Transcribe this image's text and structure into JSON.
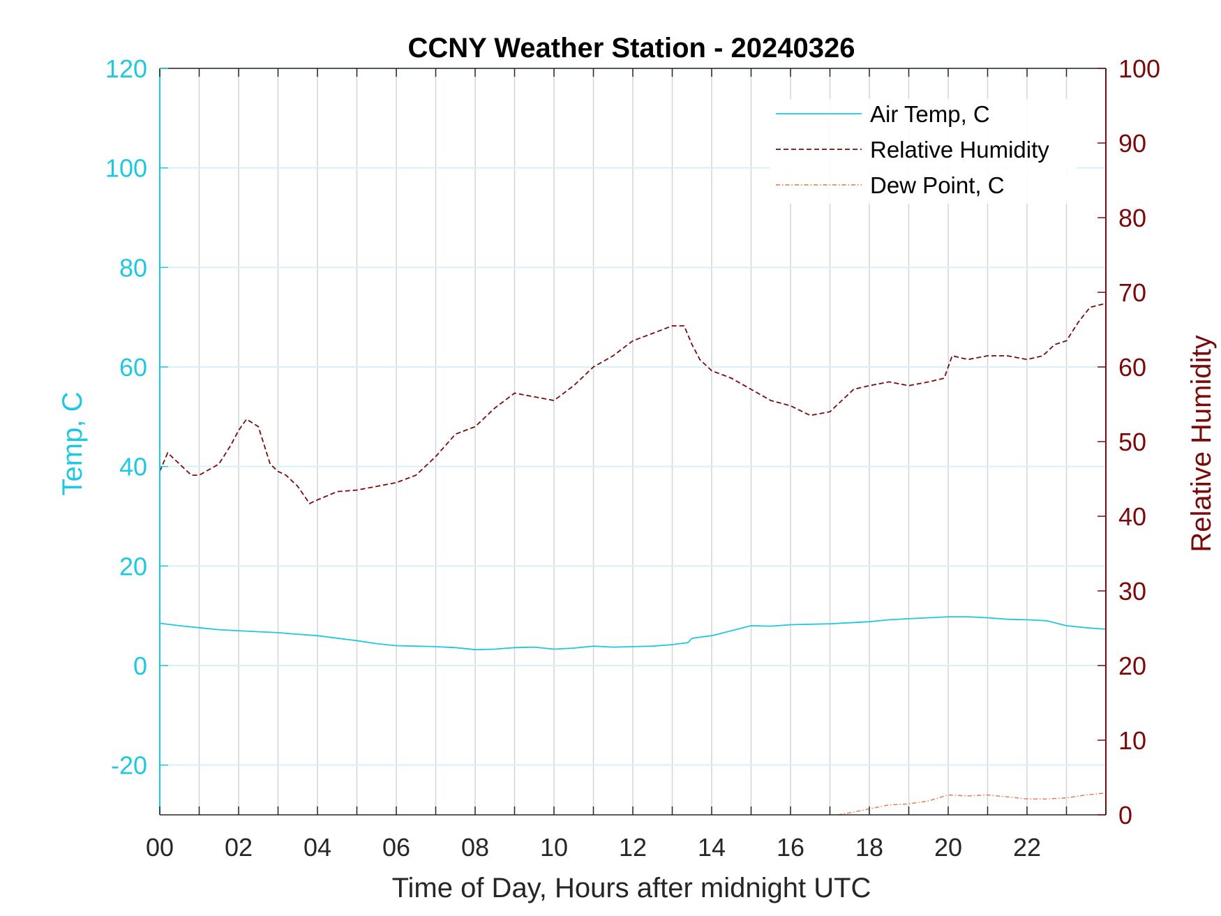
{
  "chart_data": {
    "type": "line",
    "title": "CCNY Weather Station - 20240326",
    "xlabel": "Time of Day, Hours after midnight UTC",
    "ylabel_left": "Temp, C",
    "ylabel_right": "Relative Humidity",
    "xlim": [
      0,
      24
    ],
    "ylim_left": [
      -30,
      120
    ],
    "ylim_right": [
      0,
      100
    ],
    "x_ticks": [
      0,
      2,
      4,
      6,
      8,
      10,
      12,
      14,
      16,
      18,
      20,
      22
    ],
    "x_tick_labels": [
      "00",
      "02",
      "04",
      "06",
      "08",
      "10",
      "12",
      "14",
      "16",
      "18",
      "20",
      "22"
    ],
    "y_left_ticks": [
      -20,
      0,
      20,
      40,
      60,
      80,
      100,
      120
    ],
    "y_left_tick_labels": [
      "-20",
      "0",
      "20",
      "40",
      "60",
      "80",
      "100",
      "120"
    ],
    "y_right_ticks": [
      0,
      10,
      20,
      30,
      40,
      50,
      60,
      70,
      80,
      90,
      100
    ],
    "y_right_tick_labels": [
      "0",
      "10",
      "20",
      "30",
      "40",
      "50",
      "60",
      "70",
      "80",
      "90",
      "100"
    ],
    "grid": true,
    "legend_position": "top-right",
    "colors": {
      "temp": "#1ec8e0",
      "rh": "#7a0a0a",
      "dew": "#e8743c",
      "axes": "#262626",
      "vgrid": "#cfd6dc",
      "hgrid": "#d6f2f7"
    },
    "series": [
      {
        "name": "Air Temp, C",
        "axis": "left",
        "style": "solid",
        "x": [
          0,
          0.5,
          1,
          1.5,
          2,
          2.5,
          3,
          3.5,
          4,
          4.5,
          5,
          5.5,
          6,
          6.5,
          7,
          7.5,
          8,
          8.5,
          9,
          9.5,
          10,
          10.5,
          11,
          11.5,
          12,
          12.5,
          13,
          13.4,
          13.5,
          14,
          14.5,
          15,
          15.5,
          16,
          16.5,
          17,
          17.5,
          18,
          18.5,
          19,
          19.5,
          20,
          20.5,
          21,
          21.5,
          22,
          22.5,
          23,
          23.5,
          24
        ],
        "values": [
          8.5,
          8.0,
          7.6,
          7.2,
          7.0,
          6.8,
          6.6,
          6.3,
          6.0,
          5.5,
          5.0,
          4.4,
          4.0,
          3.9,
          3.8,
          3.6,
          3.2,
          3.3,
          3.6,
          3.7,
          3.3,
          3.5,
          3.9,
          3.7,
          3.8,
          3.9,
          4.2,
          4.6,
          5.5,
          6.0,
          7.0,
          8.0,
          7.9,
          8.2,
          8.3,
          8.4,
          8.6,
          8.8,
          9.2,
          9.4,
          9.6,
          9.8,
          9.8,
          9.6,
          9.3,
          9.2,
          9.0,
          8.0,
          7.6,
          7.3
        ]
      },
      {
        "name": "Relative Humidity",
        "axis": "right",
        "style": "dashed",
        "x": [
          0,
          0.2,
          0.5,
          0.8,
          1,
          1.5,
          1.8,
          2,
          2.2,
          2.5,
          2.8,
          3,
          3.2,
          3.5,
          3.8,
          4,
          4.5,
          5,
          5.5,
          6,
          6.5,
          7,
          7.5,
          8,
          8.5,
          9,
          9.5,
          10,
          10.5,
          11,
          11.5,
          12,
          12.5,
          13,
          13.3,
          13.5,
          13.7,
          14,
          14.5,
          15,
          15.5,
          16,
          16.5,
          17,
          17.3,
          17.6,
          18,
          18.5,
          19,
          19.5,
          19.9,
          20.1,
          20.5,
          21,
          21.5,
          22,
          22.4,
          22.7,
          23,
          23.3,
          23.6,
          24
        ],
        "values": [
          46,
          48.5,
          47,
          45.5,
          45.5,
          47,
          49.5,
          51.5,
          53,
          52,
          47,
          46,
          45.5,
          44,
          41.7,
          42.2,
          43.3,
          43.5,
          44,
          44.5,
          45.5,
          48,
          51,
          52,
          54.5,
          56.5,
          56,
          55.5,
          57.5,
          60,
          61.5,
          63.5,
          64.5,
          65.5,
          65.5,
          63,
          61,
          59.5,
          58.5,
          57,
          55.5,
          54.8,
          53.5,
          54,
          55.5,
          57,
          57.5,
          58,
          57.5,
          58,
          58.5,
          61.5,
          61,
          61.5,
          61.5,
          61,
          61.5,
          63,
          63.5,
          66,
          68,
          68.5
        ]
      },
      {
        "name": "Dew Point, C",
        "axis": "left",
        "style": "dashdot",
        "x": [
          17.2,
          17.5,
          18,
          18.5,
          19,
          19.5,
          20,
          20.5,
          21,
          21.5,
          22,
          22.5,
          23,
          23.5,
          24
        ],
        "values": [
          -30,
          -29.6,
          -28.8,
          -28.0,
          -27.8,
          -27.2,
          -26.0,
          -26.2,
          -26.0,
          -26.4,
          -26.8,
          -26.8,
          -26.6,
          -26.0,
          -25.6
        ]
      }
    ]
  }
}
